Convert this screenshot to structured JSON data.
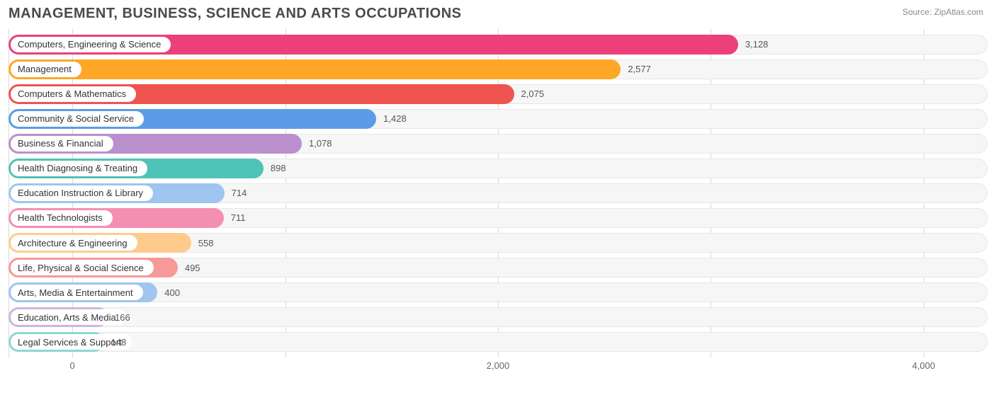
{
  "title": "MANAGEMENT, BUSINESS, SCIENCE AND ARTS OCCUPATIONS",
  "source_label": "Source: ZipAtlas.com",
  "chart": {
    "type": "bar-horizontal",
    "background_color": "#ffffff",
    "track_color": "#f6f6f6",
    "track_border": "#e6e6e6",
    "grid_color": "#d9d9d9",
    "label_bg": "#ffffff",
    "title_color": "#4a4a4a",
    "title_fontsize": 20,
    "label_fontsize": 13,
    "value_fontsize": 13,
    "value_color": "#555555",
    "bar_radius": 14,
    "x_axis": {
      "min": -300,
      "max": 4300,
      "zero_offset_frac": 0.0652,
      "ticks": [
        {
          "value": 0,
          "label": "0"
        },
        {
          "value": 2000,
          "label": "2,000"
        },
        {
          "value": 4000,
          "label": "4,000"
        }
      ],
      "grid_values": [
        -300,
        0,
        1000,
        2000,
        3000,
        4000
      ]
    },
    "bars": [
      {
        "label": "Computers, Engineering & Science",
        "value": 3128,
        "value_label": "3,128",
        "color": "#ec407a"
      },
      {
        "label": "Management",
        "value": 2577,
        "value_label": "2,577",
        "color": "#ffa726"
      },
      {
        "label": "Computers & Mathematics",
        "value": 2075,
        "value_label": "2,075",
        "color": "#ef5350"
      },
      {
        "label": "Community & Social Service",
        "value": 1428,
        "value_label": "1,428",
        "color": "#5c9ce6"
      },
      {
        "label": "Business & Financial",
        "value": 1078,
        "value_label": "1,078",
        "color": "#b98fce"
      },
      {
        "label": "Health Diagnosing & Treating",
        "value": 898,
        "value_label": "898",
        "color": "#4fc3b8"
      },
      {
        "label": "Education Instruction & Library",
        "value": 714,
        "value_label": "714",
        "color": "#9fc5f0"
      },
      {
        "label": "Health Technologists",
        "value": 711,
        "value_label": "711",
        "color": "#f48fb1"
      },
      {
        "label": "Architecture & Engineering",
        "value": 558,
        "value_label": "558",
        "color": "#ffcb8c"
      },
      {
        "label": "Life, Physical & Social Science",
        "value": 495,
        "value_label": "495",
        "color": "#f69a97"
      },
      {
        "label": "Arts, Media & Entertainment",
        "value": 400,
        "value_label": "400",
        "color": "#9fc5f0"
      },
      {
        "label": "Education, Arts & Media",
        "value": 166,
        "value_label": "166",
        "color": "#ceb5e0"
      },
      {
        "label": "Legal Services & Support",
        "value": 148,
        "value_label": "148",
        "color": "#8cd8cf"
      }
    ]
  }
}
